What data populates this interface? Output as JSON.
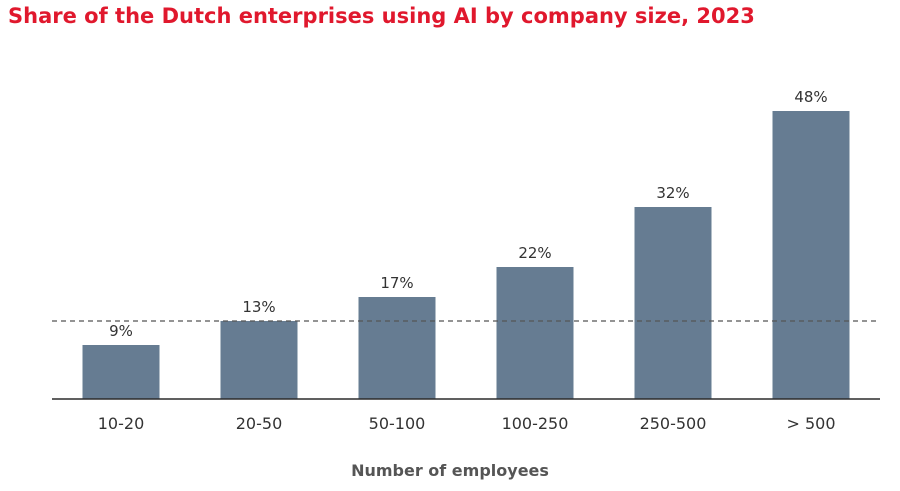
{
  "colors": {
    "title": "#e0182d",
    "bar": "#667c92",
    "axis": "#2b2b2b",
    "reference": "#555555",
    "text": "#333333"
  },
  "chart_data": {
    "type": "bar",
    "title": "Share of the Dutch enterprises using AI by company size, 2023",
    "xlabel": "Number of employees",
    "ylabel": "",
    "categories": [
      "10-20",
      "20-50",
      "50-100",
      "100-250",
      "250-500",
      "> 500"
    ],
    "values": [
      9,
      13,
      17,
      22,
      32,
      48
    ],
    "value_labels": [
      "9%",
      "13%",
      "17%",
      "22%",
      "32%",
      "48%"
    ],
    "reference_line": {
      "value": 13,
      "style": "dashed"
    },
    "ylim": [
      0,
      50
    ],
    "grid": false,
    "legend": "none"
  }
}
